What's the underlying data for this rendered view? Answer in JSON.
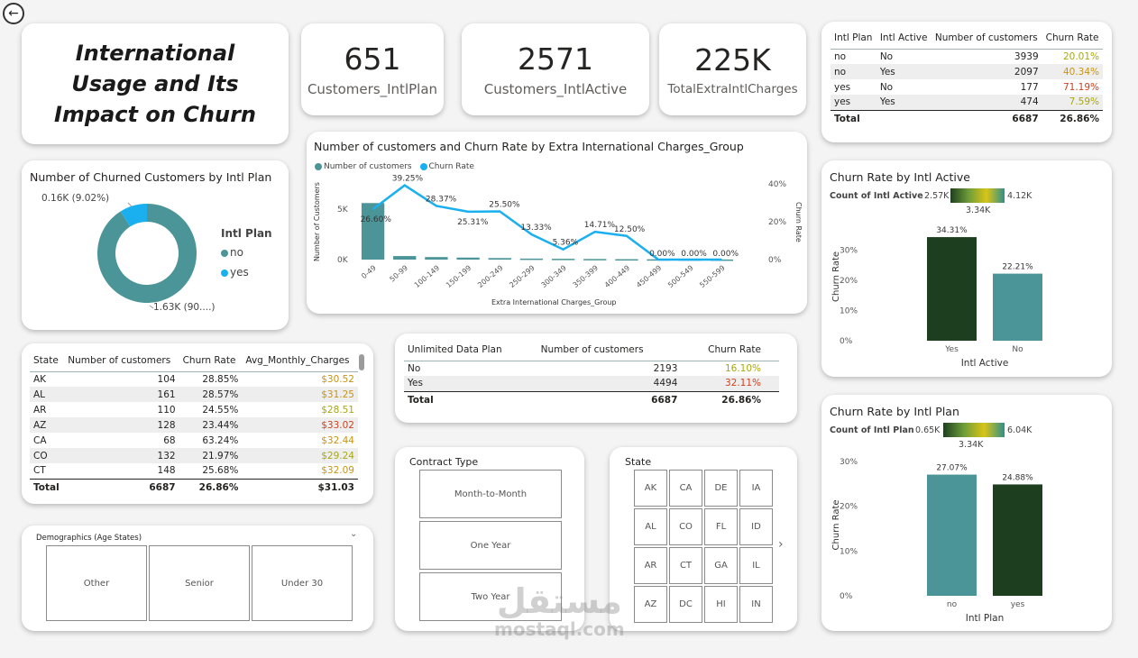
{
  "title": "International Usage and Its Impact on Churn",
  "kpis": [
    {
      "value": "651",
      "label": "Customers_IntlPlan"
    },
    {
      "value": "2571",
      "label": "Customers_IntlActive"
    },
    {
      "value": "225K",
      "label": "TotalExtraIntlCharges"
    }
  ],
  "intl_table": {
    "headers": [
      "Intl Plan",
      "Intl Active",
      "Number of customers",
      "Churn Rate"
    ],
    "rows": [
      {
        "plan": "no",
        "active": "No",
        "customers": "3939",
        "churn": "20.01%",
        "color": "#a8a80c"
      },
      {
        "plan": "no",
        "active": "Yes",
        "customers": "2097",
        "churn": "40.34%",
        "color": "#c9940f"
      },
      {
        "plan": "yes",
        "active": "No",
        "customers": "177",
        "churn": "71.19%",
        "color": "#d0401c"
      },
      {
        "plan": "yes",
        "active": "Yes",
        "customers": "474",
        "churn": "7.59%",
        "color": "#a8a80c"
      }
    ],
    "total": {
      "label": "Total",
      "customers": "6687",
      "churn": "26.86%"
    }
  },
  "donut": {
    "title": "Number of Churned Customers by Intl Plan",
    "legend_title": "Intl Plan",
    "label_small": "0.16K (9.02%)",
    "label_large": "1.63K (90....)"
  },
  "charges_chart": {
    "title": "Number of customers and Churn Rate by Extra International Charges_Group",
    "legend_customers": "Number of customers",
    "legend_churn": "Churn Rate",
    "y_left_label": "Number of Customers",
    "y_right_label": "Churn Rate",
    "x_label": "Extra International Charges_Group",
    "left_ticks": [
      "5K",
      "0K"
    ],
    "right_ticks": [
      "40%",
      "20%",
      "0%"
    ]
  },
  "chart_data": [
    {
      "type": "bar+line",
      "title": "Number of customers and Churn Rate by Extra International Charges_Group",
      "categories": [
        "0-49",
        "50-99",
        "100-149",
        "150-199",
        "200-249",
        "250-299",
        "300-349",
        "350-399",
        "400-449",
        "450-499",
        "500-549",
        "550-599"
      ],
      "series": [
        {
          "name": "Number of customers",
          "kind": "bar",
          "values": [
            5600,
            350,
            250,
            200,
            150,
            100,
            80,
            60,
            40,
            30,
            20,
            10
          ]
        },
        {
          "name": "Churn Rate",
          "kind": "line",
          "values": [
            26.6,
            39.25,
            28.37,
            25.31,
            25.5,
            13.33,
            5.36,
            14.71,
            12.5,
            0,
            0,
            0
          ],
          "labels": [
            "26.60%",
            "39.25%",
            "28.37%",
            "25.31%",
            "25.50%",
            "13.33%",
            "5.36%",
            "14.71%",
            "12.50%",
            "0.00%",
            "0.00%",
            "0.00%"
          ]
        }
      ],
      "xlabel": "Extra International Charges_Group",
      "ylabel": "Number of Customers",
      "y2label": "Churn Rate",
      "ylim": [
        0,
        7500
      ],
      "y2lim": [
        0,
        40
      ]
    },
    {
      "type": "bar",
      "title": "Churn Rate by Intl Active",
      "categories": [
        "Yes",
        "No"
      ],
      "values": [
        34.31,
        22.21
      ],
      "labels": [
        "34.31%",
        "22.21%"
      ],
      "colors": [
        "#1e3f1f",
        "#4b9598"
      ],
      "xlabel": "Intl Active",
      "ylabel": "Churn Rate",
      "ylim": [
        0,
        40
      ],
      "ticks": [
        "30%",
        "20%",
        "10%",
        "0%"
      ]
    },
    {
      "type": "bar",
      "title": "Churn Rate by Intl Plan",
      "categories": [
        "no",
        "yes"
      ],
      "values": [
        27.07,
        24.88
      ],
      "labels": [
        "27.07%",
        "24.88%"
      ],
      "colors": [
        "#4b9598",
        "#1e3f1f"
      ],
      "xlabel": "Intl Plan",
      "ylabel": "Churn Rate",
      "ylim": [
        0,
        30
      ],
      "ticks": [
        "30%",
        "20%",
        "10%",
        "0%"
      ]
    },
    {
      "type": "pie",
      "title": "Number of Churned Customers by Intl Plan",
      "categories": [
        "no",
        "yes"
      ],
      "values": [
        1630,
        160
      ],
      "colors": [
        "#4b9598",
        "#1ab0f0"
      ]
    }
  ],
  "active_chart": {
    "title": "Churn Rate by Intl Active",
    "scale_label": "Count of Intl Active",
    "scale_min": "2.57K",
    "scale_mid": "3.34K",
    "scale_max": "4.12K"
  },
  "plan_chart": {
    "title": "Churn Rate by Intl Plan",
    "scale_label": "Count of Intl Plan",
    "scale_min": "0.65K",
    "scale_mid": "3.34K",
    "scale_max": "6.04K"
  },
  "state_table": {
    "headers": [
      "State",
      "Number of customers",
      "Churn Rate",
      "Avg_Monthly_Charges"
    ],
    "rows": [
      {
        "state": "AK",
        "customers": "104",
        "churn": "28.85%",
        "charges": "$30.52",
        "color": "#c9940f"
      },
      {
        "state": "AL",
        "customers": "161",
        "churn": "28.57%",
        "charges": "$31.25",
        "color": "#c9940f"
      },
      {
        "state": "AR",
        "customers": "110",
        "churn": "24.55%",
        "charges": "$28.51",
        "color": "#a8a80c"
      },
      {
        "state": "AZ",
        "customers": "128",
        "churn": "23.44%",
        "charges": "$33.02",
        "color": "#d0401c"
      },
      {
        "state": "CA",
        "customers": "68",
        "churn": "63.24%",
        "charges": "$32.44",
        "color": "#c9940f"
      },
      {
        "state": "CO",
        "customers": "132",
        "churn": "21.97%",
        "charges": "$29.24",
        "color": "#a8a80c"
      },
      {
        "state": "CT",
        "customers": "148",
        "churn": "25.68%",
        "charges": "$32.09",
        "color": "#c9940f"
      }
    ],
    "total": {
      "label": "Total",
      "customers": "6687",
      "churn": "26.86%",
      "charges": "$31.03"
    }
  },
  "unlimited_table": {
    "headers": [
      "Unlimited Data Plan",
      "Number of customers",
      "Churn Rate"
    ],
    "rows": [
      {
        "plan": "No",
        "customers": "2193",
        "churn": "16.10%",
        "color": "#a8a80c"
      },
      {
        "plan": "Yes",
        "customers": "4494",
        "churn": "32.11%",
        "color": "#d0401c"
      }
    ],
    "total": {
      "label": "Total",
      "customers": "6687",
      "churn": "26.86%"
    }
  },
  "demographics": {
    "title": "Demographics (Age States)",
    "options": [
      "Other",
      "Senior",
      "Under 30"
    ]
  },
  "contract": {
    "title": "Contract Type",
    "options": [
      "Month-to-Month",
      "One Year",
      "Two Year"
    ]
  },
  "state_slicer": {
    "title": "State",
    "options": [
      "AK",
      "CA",
      "DE",
      "IA",
      "AL",
      "CO",
      "FL",
      "ID",
      "AR",
      "CT",
      "GA",
      "IL",
      "AZ",
      "DC",
      "HI",
      "IN"
    ]
  },
  "watermark": {
    "arabic": "مستقل",
    "latin": "mostaql.com"
  }
}
